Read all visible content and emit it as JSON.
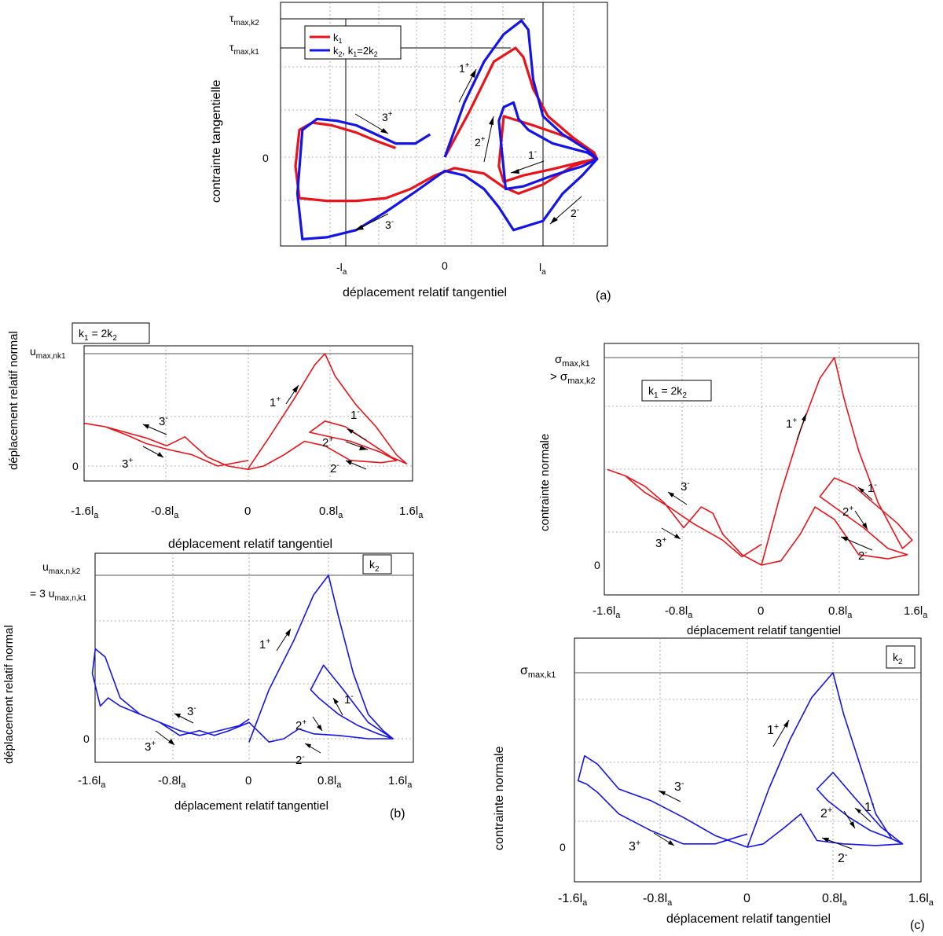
{
  "colors": {
    "k1": "#e8141b",
    "k2": "#1414e6",
    "axis": "#000000",
    "grid": "#9a9a9a"
  },
  "panels": {
    "a": {
      "label": "(a)"
    },
    "b": {
      "label": "(b)"
    },
    "c": {
      "label": "(c)"
    }
  },
  "chart_data": [
    {
      "id": "a",
      "type": "line",
      "xlabel": "déplacement relatif tangentiel",
      "ylabel": "contrainte tangentielle",
      "xticks": [
        "-l",
        "0",
        "l"
      ],
      "xtick_sub": "a",
      "yticks": [
        "0"
      ],
      "ref_labels": [
        {
          "main": "τ",
          "sub": "max,k2"
        },
        {
          "main": "τ",
          "sub": "max,k1"
        }
      ],
      "legend": [
        {
          "main": "k",
          "sub": "1",
          "rest": ""
        },
        {
          "main": "k",
          "sub": "2",
          "rest": ", k",
          "sub2": "1",
          "rest2": "=2k",
          "sub3": "2"
        }
      ],
      "annotations": [
        {
          "base": "1",
          "sup": "+"
        },
        {
          "base": "2",
          "sup": "+"
        },
        {
          "base": "3",
          "sup": "+"
        },
        {
          "base": "1",
          "sup": "-"
        },
        {
          "base": "2",
          "sup": "-"
        },
        {
          "base": "3",
          "sup": "-"
        }
      ],
      "xlim": [
        -1.6,
        1.6
      ],
      "ylim": [
        -1.0,
        1.5
      ],
      "series": [
        {
          "name": "k1",
          "x": [
            0.0,
            0.25,
            0.5,
            0.72,
            0.8,
            0.9,
            1.05,
            1.3,
            1.52,
            1.55,
            1.4,
            1.1,
            0.8,
            0.6,
            0.55,
            0.6,
            0.9,
            1.3,
            1.5,
            1.52,
            1.3,
            1.0,
            0.75,
            0.6,
            0.4,
            0.1,
            -0.1,
            -0.35,
            -0.6,
            -0.9,
            -1.2,
            -1.48,
            -1.52,
            -1.48,
            -1.35,
            -1.15,
            -0.9,
            -0.7,
            -0.5
          ],
          "y": [
            0.0,
            0.5,
            1.05,
            1.2,
            1.1,
            0.75,
            0.45,
            0.22,
            0.05,
            -0.02,
            -0.05,
            -0.13,
            -0.2,
            -0.27,
            -0.1,
            0.45,
            0.35,
            0.2,
            0.05,
            -0.02,
            -0.1,
            -0.3,
            -0.4,
            -0.33,
            -0.18,
            -0.12,
            -0.2,
            -0.35,
            -0.45,
            -0.48,
            -0.48,
            -0.45,
            -0.1,
            0.3,
            0.38,
            0.35,
            0.27,
            0.18,
            0.1
          ]
        },
        {
          "name": "k2",
          "x": [
            0.0,
            0.2,
            0.4,
            0.6,
            0.78,
            0.85,
            0.9,
            1.0,
            1.2,
            1.45,
            1.55,
            1.4,
            1.1,
            0.8,
            0.62,
            0.55,
            0.6,
            0.7,
            0.75,
            0.85,
            1.1,
            1.45,
            1.55,
            1.4,
            1.2,
            1.0,
            0.7,
            0.55,
            0.4,
            0.2,
            0.0,
            -0.3,
            -0.6,
            -0.9,
            -1.2,
            -1.45,
            -1.5,
            -1.45,
            -1.3,
            -1.1,
            -0.9,
            -0.7,
            -0.5,
            -0.3,
            -0.15
          ],
          "y": [
            0.0,
            0.6,
            1.05,
            1.35,
            1.5,
            1.4,
            0.85,
            0.45,
            0.25,
            0.08,
            -0.02,
            -0.1,
            -0.2,
            -0.32,
            -0.35,
            0.4,
            0.55,
            0.6,
            0.42,
            0.3,
            0.15,
            0.05,
            -0.02,
            -0.2,
            -0.4,
            -0.7,
            -0.8,
            -0.55,
            -0.35,
            -0.2,
            -0.15,
            -0.38,
            -0.6,
            -0.8,
            -0.88,
            -0.9,
            -0.4,
            0.3,
            0.42,
            0.4,
            0.35,
            0.25,
            0.15,
            0.15,
            0.25
          ]
        }
      ]
    },
    {
      "id": "b1",
      "type": "line",
      "xlabel": "déplacement relatif tangentiel",
      "ylabel": "déplacement relatif normal",
      "box_label": {
        "main": "k",
        "sub": "1",
        "rest": " = 2k",
        "sub2": "2"
      },
      "ref_label": {
        "main": "u",
        "sub": "max,nk1"
      },
      "xticks": [
        "-1.6l",
        "-0.8l",
        "0",
        "0.8l",
        "1.6l"
      ],
      "xtick_sub": "a",
      "yticks": [
        "0"
      ],
      "annotations": [
        {
          "base": "1",
          "sup": "+"
        },
        {
          "base": "1",
          "sup": "-"
        },
        {
          "base": "2",
          "sup": "+"
        },
        {
          "base": "2",
          "sup": "-"
        },
        {
          "base": "3",
          "sup": "-"
        },
        {
          "base": "3",
          "sup": "+"
        }
      ],
      "xlim": [
        -1.6,
        1.6
      ],
      "ylim": [
        -0.1,
        1.0
      ],
      "series": [
        {
          "name": "k1",
          "x": [
            0.0,
            0.2,
            0.45,
            0.65,
            0.75,
            0.85,
            1.05,
            1.25,
            1.45,
            1.55,
            1.4,
            1.2,
            0.95,
            0.75,
            0.6,
            0.7,
            1.0,
            1.3,
            1.45,
            1.3,
            1.0,
            0.75,
            0.55,
            0.35,
            0.15,
            0.0,
            -0.2,
            -0.4,
            -0.55,
            -0.62,
            -0.8,
            -1.0,
            -1.2,
            -1.4,
            -1.6,
            -1.4,
            -1.2,
            -1.0,
            -0.8,
            -0.55,
            -0.3,
            0.0
          ],
          "y": [
            -0.02,
            0.25,
            0.6,
            0.9,
            1.0,
            0.8,
            0.55,
            0.35,
            0.1,
            0.02,
            0.08,
            0.2,
            0.35,
            0.4,
            0.3,
            0.28,
            0.22,
            0.12,
            0.05,
            0.03,
            0.05,
            0.18,
            0.22,
            0.1,
            0.0,
            -0.03,
            0.0,
            0.08,
            0.2,
            0.26,
            0.18,
            0.25,
            0.3,
            0.35,
            0.38,
            0.35,
            0.28,
            0.2,
            0.15,
            0.1,
            0.0,
            0.05
          ]
        }
      ]
    },
    {
      "id": "b2",
      "type": "line",
      "xlabel": "déplacement relatif tangentiel",
      "ylabel": "déplacement relatif normal",
      "box_label": {
        "main": "k",
        "sub": "2"
      },
      "ref_label": {
        "main": "u",
        "sub": "max,n,k2",
        "line2": "= 3 u",
        "sub2": "max,n,k1"
      },
      "xticks": [
        "-1.6l",
        "-0.8l",
        "0",
        "0.8l",
        "1.6l"
      ],
      "xtick_sub": "a",
      "yticks": [
        "0"
      ],
      "annotations": [
        {
          "base": "1",
          "sup": "+"
        },
        {
          "base": "1",
          "sup": "-"
        },
        {
          "base": "2",
          "sup": "+"
        },
        {
          "base": "2",
          "sup": "-"
        },
        {
          "base": "3",
          "sup": "-"
        },
        {
          "base": "3",
          "sup": "+"
        }
      ],
      "xlim": [
        -1.6,
        1.6
      ],
      "ylim": [
        -0.1,
        1.0
      ],
      "series": [
        {
          "name": "k2",
          "x": [
            0.0,
            0.2,
            0.45,
            0.65,
            0.8,
            0.9,
            1.05,
            1.2,
            1.35,
            1.45,
            1.2,
            0.95,
            0.75,
            0.62,
            0.7,
            0.9,
            1.1,
            1.3,
            1.45,
            1.2,
            0.9,
            0.65,
            0.5,
            0.35,
            0.2,
            0.0,
            -0.2,
            -0.35,
            -0.5,
            -0.7,
            -0.9,
            -1.1,
            -1.3,
            -1.45,
            -1.55,
            -1.58,
            -1.5,
            -1.42,
            -1.3,
            -1.1,
            -0.9,
            -0.7,
            -0.5,
            -0.3,
            -0.1,
            0.0
          ],
          "y": [
            -0.02,
            0.3,
            0.6,
            0.88,
            1.0,
            0.75,
            0.4,
            0.15,
            0.05,
            0.0,
            0.1,
            0.3,
            0.45,
            0.3,
            0.25,
            0.15,
            0.08,
            0.03,
            0.0,
            0.0,
            0.02,
            0.03,
            0.06,
            0.0,
            -0.02,
            0.1,
            0.05,
            0.02,
            0.05,
            0.02,
            0.1,
            0.15,
            0.25,
            0.5,
            0.55,
            0.4,
            0.2,
            0.25,
            0.2,
            0.15,
            0.1,
            0.05,
            0.02,
            0.05,
            0.08,
            0.12
          ]
        }
      ]
    },
    {
      "id": "c1",
      "type": "line",
      "xlabel": "déplacement relatif tangentiel",
      "ylabel": "contrainte normale",
      "box_label": {
        "main": "k",
        "sub": "1",
        "rest": " = 2k",
        "sub2": "2"
      },
      "ref_label": {
        "main": "σ",
        "sub": "max,k1",
        "line2": "> σ",
        "sub2": "max,k2"
      },
      "xticks": [
        "-1.6l",
        "-0.8l",
        "0",
        "0.8l",
        "1.6l"
      ],
      "xtick_sub": "a",
      "yticks": [
        "0"
      ],
      "annotations": [
        {
          "base": "1",
          "sup": "+"
        },
        {
          "base": "1",
          "sup": "-"
        },
        {
          "base": "2",
          "sup": "+"
        },
        {
          "base": "2",
          "sup": "-"
        },
        {
          "base": "3",
          "sup": "-"
        },
        {
          "base": "3",
          "sup": "+"
        }
      ],
      "xlim": [
        -1.6,
        1.6
      ],
      "ylim": [
        -0.05,
        1.0
      ],
      "series": [
        {
          "name": "k1",
          "x": [
            0.0,
            0.2,
            0.4,
            0.6,
            0.75,
            0.85,
            1.0,
            1.2,
            1.45,
            1.55,
            1.4,
            1.15,
            0.95,
            0.75,
            0.6,
            0.75,
            1.05,
            1.3,
            1.5,
            1.3,
            1.0,
            0.75,
            0.55,
            0.4,
            0.2,
            0.0,
            -0.2,
            -0.4,
            -0.5,
            -0.62,
            -0.8,
            -1.0,
            -1.2,
            -1.4,
            -1.58,
            -1.4,
            -1.2,
            -0.95,
            -0.7,
            -0.4,
            -0.2,
            0.0
          ],
          "y": [
            0.0,
            0.35,
            0.65,
            0.9,
            1.0,
            0.8,
            0.55,
            0.3,
            0.08,
            0.12,
            0.2,
            0.3,
            0.38,
            0.42,
            0.33,
            0.28,
            0.18,
            0.08,
            0.05,
            0.03,
            0.05,
            0.22,
            0.28,
            0.15,
            0.02,
            0.0,
            0.05,
            0.15,
            0.25,
            0.28,
            0.18,
            0.3,
            0.38,
            0.43,
            0.46,
            0.43,
            0.35,
            0.28,
            0.2,
            0.12,
            0.04,
            0.1
          ]
        }
      ]
    },
    {
      "id": "c2",
      "type": "line",
      "xlabel": "déplacement relatif tangentiel",
      "ylabel": "contrainte normale",
      "box_label": {
        "main": "k",
        "sub": "2"
      },
      "ref_label": {
        "main": "σ",
        "sub": "max,k1"
      },
      "xticks": [
        "-1.6l",
        "-0.8l",
        "0",
        "0.8l",
        "1.6l"
      ],
      "xtick_sub": "a",
      "yticks": [
        "0"
      ],
      "annotations": [
        {
          "base": "1",
          "sup": "+"
        },
        {
          "base": "1",
          "sup": "-"
        },
        {
          "base": "2",
          "sup": "+"
        },
        {
          "base": "2",
          "sup": "-"
        },
        {
          "base": "3",
          "sup": "-"
        },
        {
          "base": "3",
          "sup": "+"
        }
      ],
      "xlim": [
        -1.6,
        1.6
      ],
      "ylim": [
        -0.05,
        1.05
      ],
      "series": [
        {
          "name": "k2",
          "x": [
            0.0,
            0.2,
            0.4,
            0.6,
            0.8,
            0.9,
            1.05,
            1.2,
            1.35,
            1.45,
            1.25,
            1.0,
            0.8,
            0.65,
            0.75,
            0.95,
            1.15,
            1.35,
            1.45,
            1.2,
            0.9,
            0.65,
            0.5,
            0.35,
            0.15,
            0.0,
            -0.3,
            -0.6,
            -0.9,
            -1.2,
            -1.4,
            -1.52,
            -1.58,
            -1.5,
            -1.4,
            -1.2,
            -0.9,
            -0.6,
            -0.3,
            -0.1,
            0.0
          ],
          "y": [
            0.0,
            0.35,
            0.65,
            0.9,
            1.05,
            0.8,
            0.5,
            0.2,
            0.05,
            0.02,
            0.12,
            0.3,
            0.45,
            0.35,
            0.28,
            0.18,
            0.1,
            0.05,
            0.02,
            0.01,
            0.02,
            0.04,
            0.2,
            0.12,
            0.02,
            0.0,
            0.07,
            0.18,
            0.28,
            0.35,
            0.5,
            0.55,
            0.4,
            0.38,
            0.33,
            0.2,
            0.1,
            0.02,
            0.02,
            0.06,
            0.08
          ]
        }
      ]
    }
  ]
}
